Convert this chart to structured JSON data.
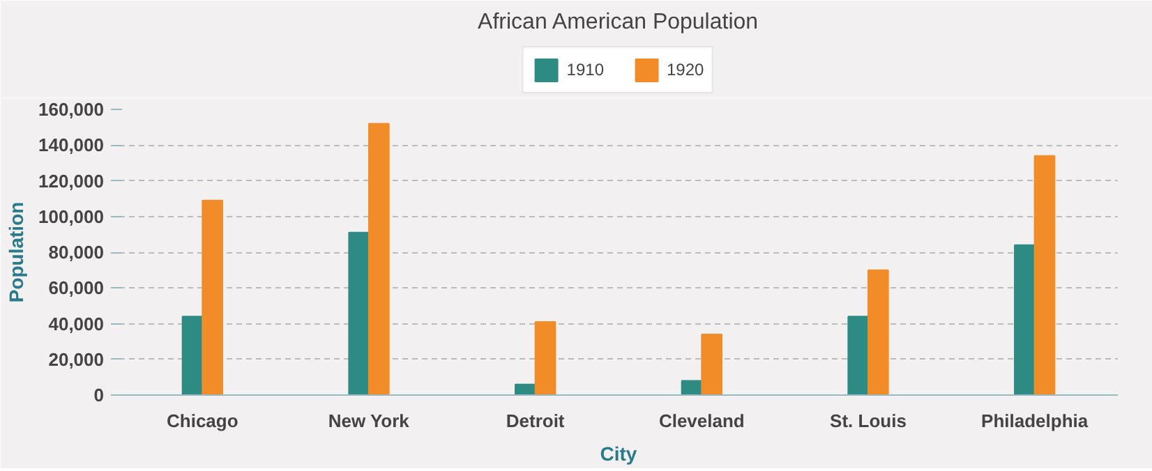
{
  "chart_data": {
    "type": "bar",
    "title": "African American Population",
    "xlabel": "City",
    "ylabel": "Population",
    "categories": [
      "Chicago",
      "New York",
      "Detroit",
      "Cleveland",
      "St. Louis",
      "Philadelphia"
    ],
    "series": [
      {
        "name": "1910",
        "color": "#2e8b84",
        "values": [
          44000,
          91000,
          6000,
          8000,
          44000,
          84000
        ]
      },
      {
        "name": "1920",
        "color": "#f28c28",
        "values": [
          109000,
          152000,
          41000,
          34000,
          70000,
          134000
        ]
      }
    ],
    "ylim": [
      0,
      160000
    ],
    "yticks": [
      {
        "value": 0,
        "label": "0"
      },
      {
        "value": 20000,
        "label": "20,000"
      },
      {
        "value": 40000,
        "label": "40,000"
      },
      {
        "value": 60000,
        "label": "60,000"
      },
      {
        "value": 80000,
        "label": "80,000"
      },
      {
        "value": 100000,
        "label": "100,000"
      },
      {
        "value": 120000,
        "label": "120,000"
      },
      {
        "value": 140000,
        "label": "140,000"
      },
      {
        "value": 160000,
        "label": "160,000"
      }
    ],
    "grid": "y",
    "legend": "top"
  }
}
